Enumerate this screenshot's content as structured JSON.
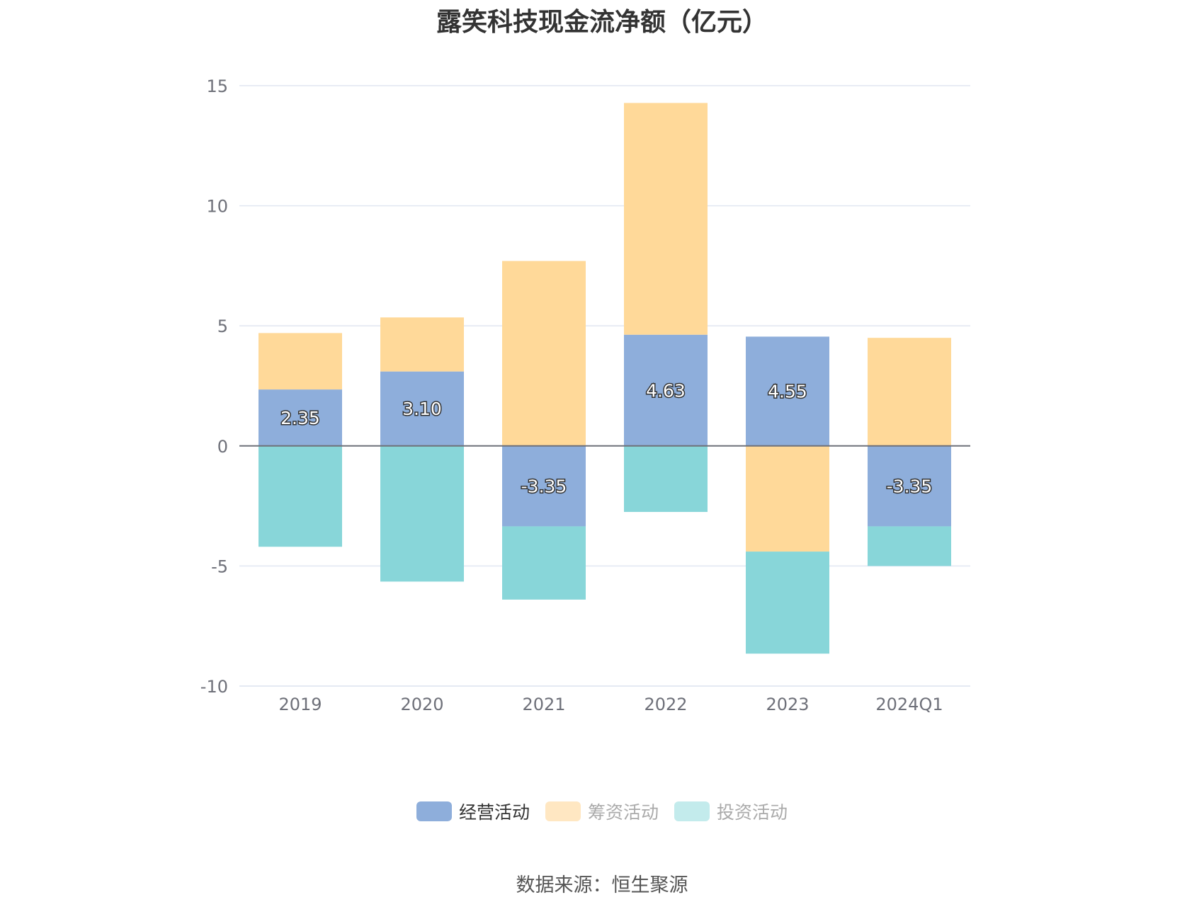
{
  "title": "露笑科技现金流净额（亿元）",
  "source": "数据来源：恒生聚源",
  "legend": [
    {
      "name": "经营活动",
      "color": "#8eaedb",
      "text_color": "#333333"
    },
    {
      "name": "筹资活动",
      "color": "#ffe7c2",
      "text_color": "#aaaaaa"
    },
    {
      "name": "投资活动",
      "color": "#c3ebec",
      "text_color": "#aaaaaa"
    }
  ],
  "chart_data": {
    "type": "bar",
    "stacked": true,
    "title": "露笑科技现金流净额（亿元）",
    "categories": [
      "2019",
      "2020",
      "2021",
      "2022",
      "2023",
      "2024Q1"
    ],
    "series": [
      {
        "name": "经营活动",
        "color": "#8eaedb",
        "values": [
          2.35,
          3.1,
          -3.35,
          4.63,
          4.55,
          -3.35
        ],
        "labels": [
          "2.35",
          "3.10",
          "-3.35",
          "4.63",
          "4.55",
          "-3.35"
        ]
      },
      {
        "name": "筹资活动",
        "color": "#ffd999",
        "values": [
          2.35,
          2.25,
          7.7,
          9.65,
          -4.4,
          4.5
        ]
      },
      {
        "name": "投资活动",
        "color": "#88d6d9",
        "values": [
          -4.2,
          -5.65,
          -3.05,
          -2.75,
          -4.25,
          -1.65
        ]
      }
    ],
    "yticks": [
      15,
      10,
      5,
      0,
      -5,
      -10
    ],
    "ylim": [
      -10,
      15
    ],
    "grid": true,
    "legend_position": "bottom"
  }
}
